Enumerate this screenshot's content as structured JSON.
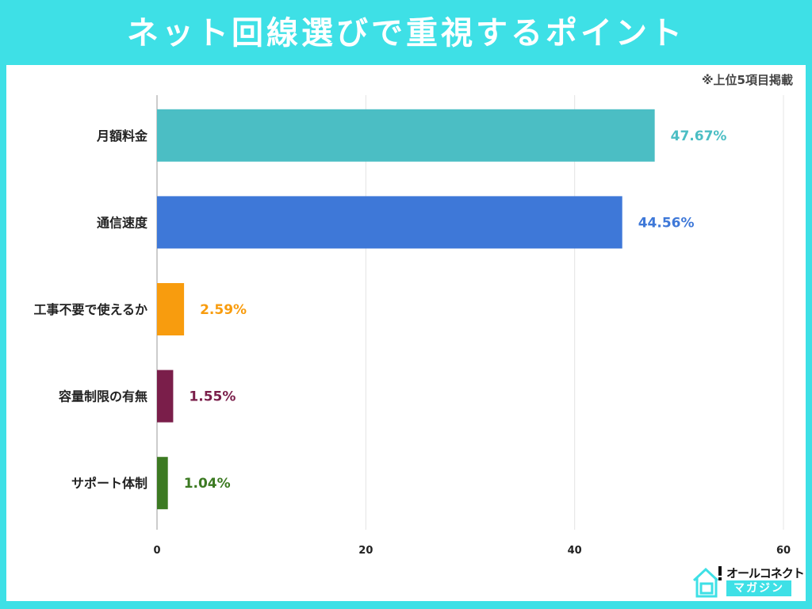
{
  "title": "ネット回線選びで重視するポイント",
  "note": "※上位5項目掲載",
  "logo": {
    "line1": "オールコネクト",
    "line2": "マガジン"
  },
  "colors": {
    "frame": "#3ee0e6"
  },
  "chart_data": {
    "type": "bar",
    "orientation": "horizontal",
    "categories": [
      "月額料金",
      "通信速度",
      "工事不要で使えるか",
      "容量制限の有無",
      "サポート体制"
    ],
    "values": [
      47.67,
      44.56,
      2.59,
      1.55,
      1.04
    ],
    "data_labels": [
      "47.67%",
      "44.56%",
      "2.59%",
      "1.55%",
      "1.04%"
    ],
    "colors": [
      "#4bbec4",
      "#3e78d8",
      "#f89c0e",
      "#7a1e4a",
      "#3c7a22"
    ],
    "xlim": [
      0,
      60
    ],
    "xticks": [
      0,
      20,
      40,
      60
    ],
    "grid": true,
    "xlabel": "",
    "ylabel": ""
  }
}
